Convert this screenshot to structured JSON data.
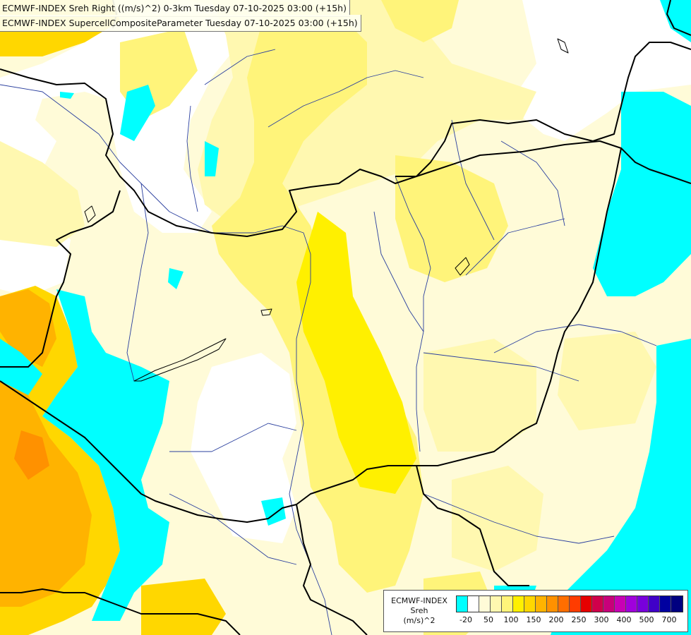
{
  "header": {
    "line1": "ECMWF-INDEX Sreh Right ((m/s)^2) 0-3km Tuesday 07-10-2025 03:00 (+15h)",
    "line2": "ECMWF-INDEX SupercellCompositeParameter Tuesday 07-10-2025 03:00 (+15h)"
  },
  "legend": {
    "title_line1": "ECMWF-INDEX",
    "title_line2": "Sreh",
    "title_line3": "(m/s)^2",
    "colors": [
      "#00ffff",
      "#ffffff",
      "#fffbd8",
      "#fff8b0",
      "#fff47a",
      "#fff000",
      "#ffd700",
      "#ffb300",
      "#ff9100",
      "#ff6e00",
      "#ff3c00",
      "#e60000",
      "#d0004a",
      "#c8007a",
      "#c800b4",
      "#a000dc",
      "#7800dc",
      "#4000c8",
      "#0000a0",
      "#000080"
    ],
    "tick_labels": [
      "-20",
      "50",
      "100",
      "150",
      "200",
      "250",
      "300",
      "400",
      "500",
      "700"
    ]
  },
  "map_colors": {
    "cyan": "#00ffff",
    "pale_yellow": "#fffbd8",
    "light_yellow": "#fff8b0",
    "yellow": "#fff47a",
    "strong_yellow": "#fff000",
    "gold": "#ffd700",
    "orange": "#ffb300",
    "dark_orange": "#ff9100",
    "border": "#000000",
    "river": "#2a3f9e"
  }
}
